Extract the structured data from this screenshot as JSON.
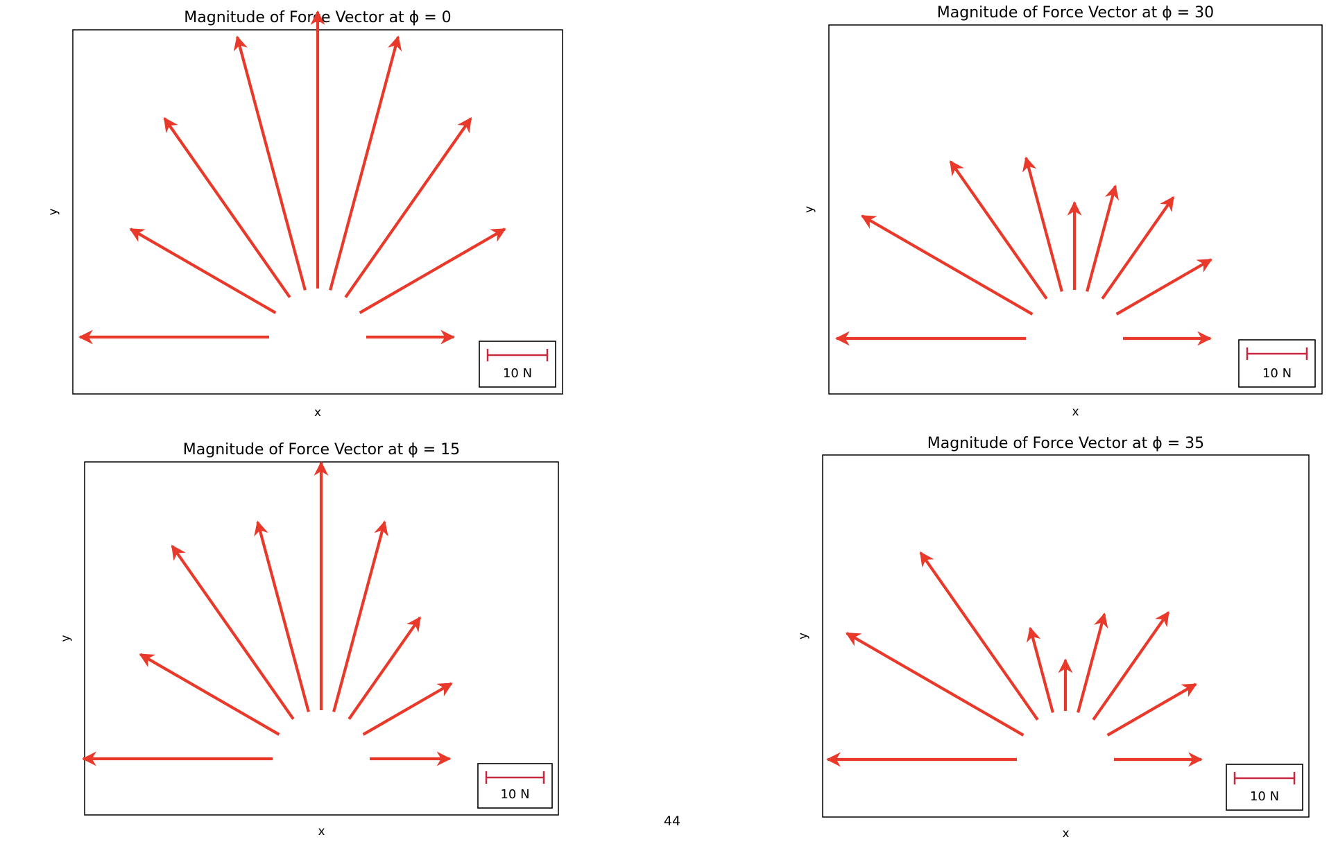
{
  "page_number": "44",
  "colors": {
    "arrow": "#e8392a",
    "scalebar": "#c8283f",
    "frame": "#000000"
  },
  "chart_data": [
    {
      "type": "quiver",
      "title": "Magnitude of Force Vector at ϕ = 0",
      "xlabel": "x",
      "ylabel": "y",
      "scale_label": "10 N",
      "vectors": [
        {
          "angle_deg": 180,
          "magnitude": 26
        },
        {
          "angle_deg": 150,
          "magnitude": 23
        },
        {
          "angle_deg": 125,
          "magnitude": 30
        },
        {
          "angle_deg": 105,
          "magnitude": 36
        },
        {
          "angle_deg": 90,
          "magnitude": 38
        },
        {
          "angle_deg": 75,
          "magnitude": 36
        },
        {
          "angle_deg": 55,
          "magnitude": 30
        },
        {
          "angle_deg": 30,
          "magnitude": 23
        },
        {
          "angle_deg": 0,
          "magnitude": 12
        }
      ]
    },
    {
      "type": "quiver",
      "title": "Magnitude of Force Vector at ϕ = 30",
      "xlabel": "x",
      "ylabel": "y",
      "scale_label": "10 N",
      "vectors": [
        {
          "angle_deg": 180,
          "magnitude": 26
        },
        {
          "angle_deg": 150,
          "magnitude": 27
        },
        {
          "angle_deg": 125,
          "magnitude": 23
        },
        {
          "angle_deg": 105,
          "magnitude": 19
        },
        {
          "angle_deg": 90,
          "magnitude": 12
        },
        {
          "angle_deg": 75,
          "magnitude": 15
        },
        {
          "angle_deg": 55,
          "magnitude": 17
        },
        {
          "angle_deg": 30,
          "magnitude": 15
        },
        {
          "angle_deg": 0,
          "magnitude": 12
        }
      ]
    },
    {
      "type": "quiver",
      "title": "Magnitude of Force Vector at ϕ = 15",
      "xlabel": "x",
      "ylabel": "y",
      "scale_label": "10 N",
      "vectors": [
        {
          "angle_deg": 180,
          "magnitude": 26
        },
        {
          "angle_deg": 150,
          "magnitude": 22
        },
        {
          "angle_deg": 125,
          "magnitude": 29
        },
        {
          "angle_deg": 105,
          "magnitude": 27
        },
        {
          "angle_deg": 90,
          "magnitude": 34
        },
        {
          "angle_deg": 75,
          "magnitude": 27
        },
        {
          "angle_deg": 55,
          "magnitude": 17
        },
        {
          "angle_deg": 30,
          "magnitude": 14
        },
        {
          "angle_deg": 0,
          "magnitude": 11
        }
      ]
    },
    {
      "type": "quiver",
      "title": "Magnitude of Force Vector at ϕ = 35",
      "xlabel": "x",
      "ylabel": "y",
      "scale_label": "10 N",
      "vectors": [
        {
          "angle_deg": 180,
          "magnitude": 26
        },
        {
          "angle_deg": 150,
          "magnitude": 28
        },
        {
          "angle_deg": 125,
          "magnitude": 28
        },
        {
          "angle_deg": 105,
          "magnitude": 12
        },
        {
          "angle_deg": 90,
          "magnitude": 7
        },
        {
          "angle_deg": 75,
          "magnitude": 14
        },
        {
          "angle_deg": 55,
          "magnitude": 18
        },
        {
          "angle_deg": 30,
          "magnitude": 14
        },
        {
          "angle_deg": 0,
          "magnitude": 12
        }
      ]
    }
  ]
}
